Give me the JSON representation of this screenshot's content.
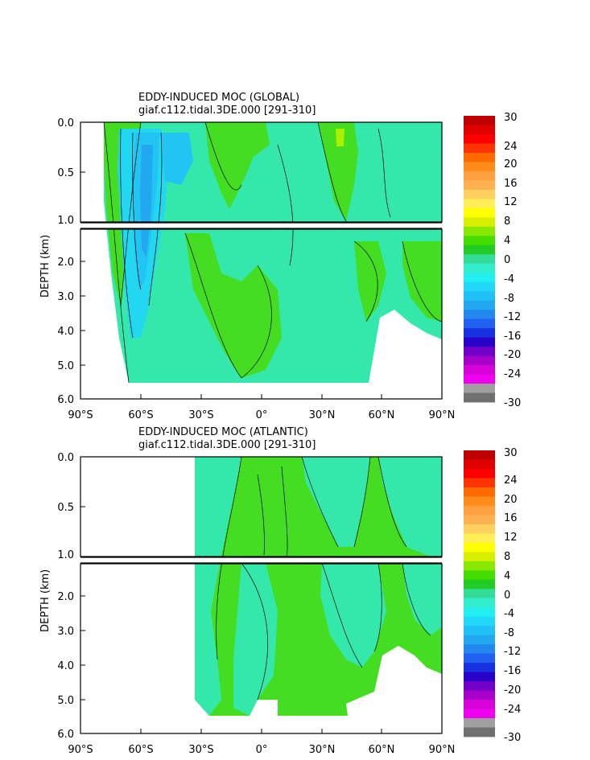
{
  "chart_data": [
    {
      "type": "heatmap",
      "title": "EDDY-INDUCED MOC (GLOBAL)",
      "subtitle": "giaf.c112.tidal.3DE.000 [291-310]",
      "ylabel": "DEPTH (km)",
      "xlabel": "",
      "x_ticks": [
        "90°S",
        "60°S",
        "30°S",
        "0°",
        "30°N",
        "60°N",
        "90°N"
      ],
      "y_ticks_upper": [
        "0.0",
        "0.5",
        "1.0"
      ],
      "y_ticks_lower": [
        "2.0",
        "3.0",
        "4.0",
        "5.0",
        "6.0"
      ],
      "xlim": [
        -90,
        90
      ],
      "ylim_upper": [
        0,
        1
      ],
      "ylim_lower": [
        1,
        6
      ],
      "grid": false,
      "coverage": {
        "lat_start": -78,
        "lat_end": 90
      },
      "anomalies": [
        {
          "lat": -52,
          "depth_top": 0.1,
          "depth_bottom": 4.5,
          "value": -9
        },
        {
          "lat": -45,
          "depth_top": 0.0,
          "depth_bottom": 0.8,
          "value": -6
        },
        {
          "lat": 40,
          "depth_top": 0.0,
          "depth_bottom": 0.3,
          "value": 4
        },
        {
          "lat": -5,
          "depth_top": 3.0,
          "depth_bottom": 4.5,
          "value": 2
        }
      ]
    },
    {
      "type": "heatmap",
      "title": "EDDY-INDUCED MOC (ATLANTIC)",
      "subtitle": "giaf.c112.tidal.3DE.000 [291-310]",
      "ylabel": "DEPTH (km)",
      "xlabel": "",
      "x_ticks": [
        "90°S",
        "60°S",
        "30°S",
        "0°",
        "30°N",
        "60°N",
        "90°N"
      ],
      "y_ticks_upper": [
        "0.0",
        "0.5",
        "1.0"
      ],
      "y_ticks_lower": [
        "2.0",
        "3.0",
        "4.0",
        "5.0",
        "6.0"
      ],
      "xlim": [
        -90,
        90
      ],
      "ylim_upper": [
        0,
        1
      ],
      "ylim_lower": [
        1,
        6
      ],
      "grid": false,
      "coverage": {
        "lat_start": -33,
        "lat_end": 90
      },
      "anomalies": []
    }
  ],
  "colorbar": {
    "labels": [
      "30",
      "24",
      "20",
      "16",
      "12",
      "8",
      "4",
      "0",
      "-4",
      "-8",
      "-12",
      "-16",
      "-20",
      "-24",
      "-30"
    ],
    "colors": [
      "#c00000",
      "#e00000",
      "#ff0000",
      "#ff3300",
      "#ff6a00",
      "#ff8c1a",
      "#ffa040",
      "#ffb050",
      "#ffd060",
      "#ffee55",
      "#ffff00",
      "#d8f000",
      "#88e800",
      "#44dd00",
      "#22cc22",
      "#33dd99",
      "#33eecc",
      "#22f0f0",
      "#22d8f8",
      "#22c0f8",
      "#22a8f0",
      "#2288f0",
      "#2060f0",
      "#1830e0",
      "#2800c8",
      "#7000c8",
      "#a800c8",
      "#d800d8",
      "#f000f0",
      "#a0a0a0",
      "#707070"
    ]
  }
}
